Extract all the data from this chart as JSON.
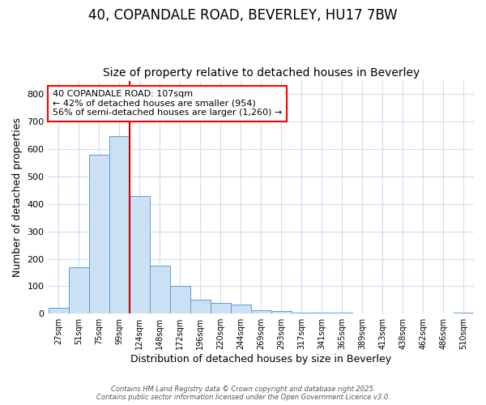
{
  "title": "40, COPANDALE ROAD, BEVERLEY, HU17 7BW",
  "subtitle": "Size of property relative to detached houses in Beverley",
  "xlabel": "Distribution of detached houses by size in Beverley",
  "ylabel": "Number of detached properties",
  "bins": [
    "27sqm",
    "51sqm",
    "75sqm",
    "99sqm",
    "124sqm",
    "148sqm",
    "172sqm",
    "196sqm",
    "220sqm",
    "244sqm",
    "269sqm",
    "293sqm",
    "317sqm",
    "341sqm",
    "365sqm",
    "389sqm",
    "413sqm",
    "438sqm",
    "462sqm",
    "486sqm",
    "510sqm"
  ],
  "values": [
    20,
    170,
    580,
    648,
    430,
    175,
    102,
    52,
    40,
    33,
    12,
    10,
    5,
    4,
    3,
    2,
    2,
    1,
    0,
    0,
    5
  ],
  "bar_color": "#cce0f5",
  "bar_edgecolor": "#5b9bd5",
  "red_line_x": 3.5,
  "annotation_title": "40 COPANDALE ROAD: 107sqm",
  "annotation_line1": "← 42% of detached houses are smaller (954)",
  "annotation_line2": "56% of semi-detached houses are larger (1,260) →",
  "annotation_box_color": "white",
  "annotation_box_edgecolor": "red",
  "red_line_color": "#cc0000",
  "ylim": [
    0,
    850
  ],
  "yticks": [
    0,
    100,
    200,
    300,
    400,
    500,
    600,
    700,
    800
  ],
  "footer1": "Contains HM Land Registry data © Crown copyright and database right 2025.",
  "footer2": "Contains public sector information licensed under the Open Government Licence v3.0.",
  "background_color": "#ffffff",
  "grid_color": "#d0ddf0",
  "title_fontsize": 12,
  "subtitle_fontsize": 10,
  "ylabel_fontsize": 9,
  "xlabel_fontsize": 9
}
